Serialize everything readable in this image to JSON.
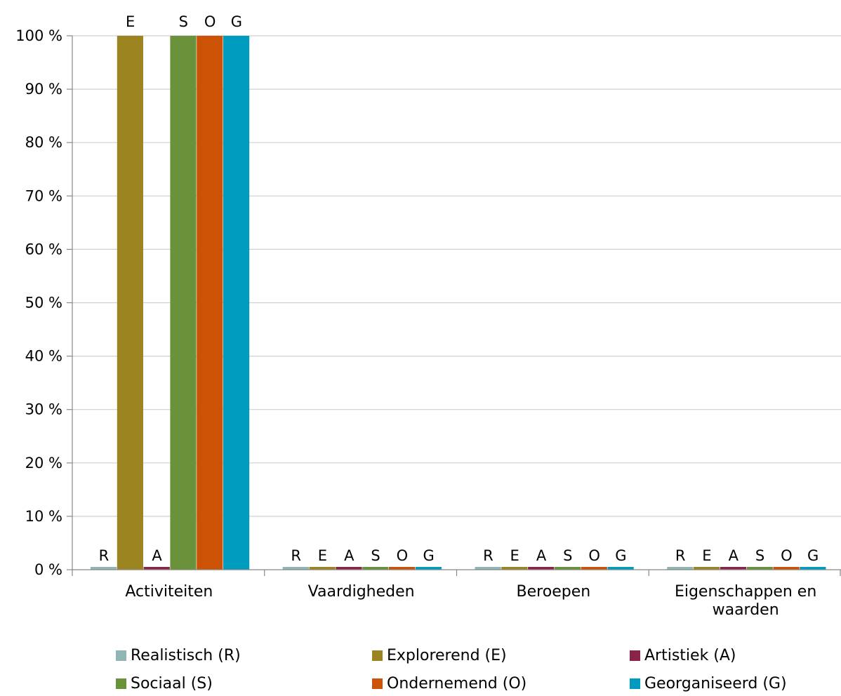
{
  "chart_data": {
    "type": "bar",
    "categories": [
      "Activiteiten",
      "Vaardigheden",
      "Beroepen",
      "Eigenschappen en waarden"
    ],
    "series": [
      {
        "name": "Realistisch (R)",
        "short": "R",
        "color": "#8fb5b4",
        "values": [
          0,
          0,
          0,
          0
        ]
      },
      {
        "name": "Explorerend (E)",
        "short": "E",
        "color": "#9c8420",
        "values": [
          100,
          0,
          0,
          0
        ]
      },
      {
        "name": "Artistiek (A)",
        "short": "A",
        "color": "#8a2348",
        "values": [
          0,
          0,
          0,
          0
        ]
      },
      {
        "name": "Sociaal (S)",
        "short": "S",
        "color": "#6a923a",
        "values": [
          100,
          0,
          0,
          0
        ]
      },
      {
        "name": "Ondernemend (O)",
        "short": "O",
        "color": "#cc5206",
        "values": [
          100,
          0,
          0,
          0
        ]
      },
      {
        "name": "Georganiseerd (G)",
        "short": "G",
        "color": "#009cc0",
        "values": [
          100,
          0,
          0,
          0
        ]
      }
    ],
    "ylim": [
      0,
      100
    ],
    "yticks": [
      0,
      10,
      20,
      30,
      40,
      50,
      60,
      70,
      80,
      90,
      100
    ],
    "y_unit": " %",
    "grid": true,
    "legend_position": "bottom"
  }
}
